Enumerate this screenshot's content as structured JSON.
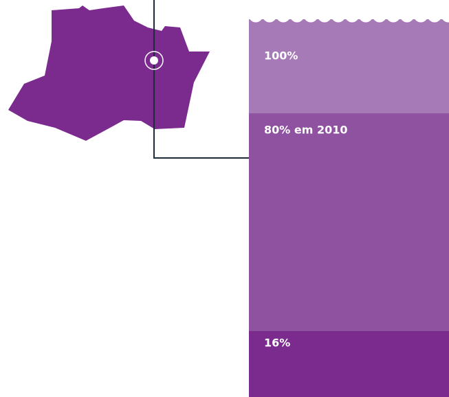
{
  "levels": [
    {
      "label": "100%"
    },
    {
      "label": "80% em 2010"
    },
    {
      "label": "16%"
    }
  ]
}
